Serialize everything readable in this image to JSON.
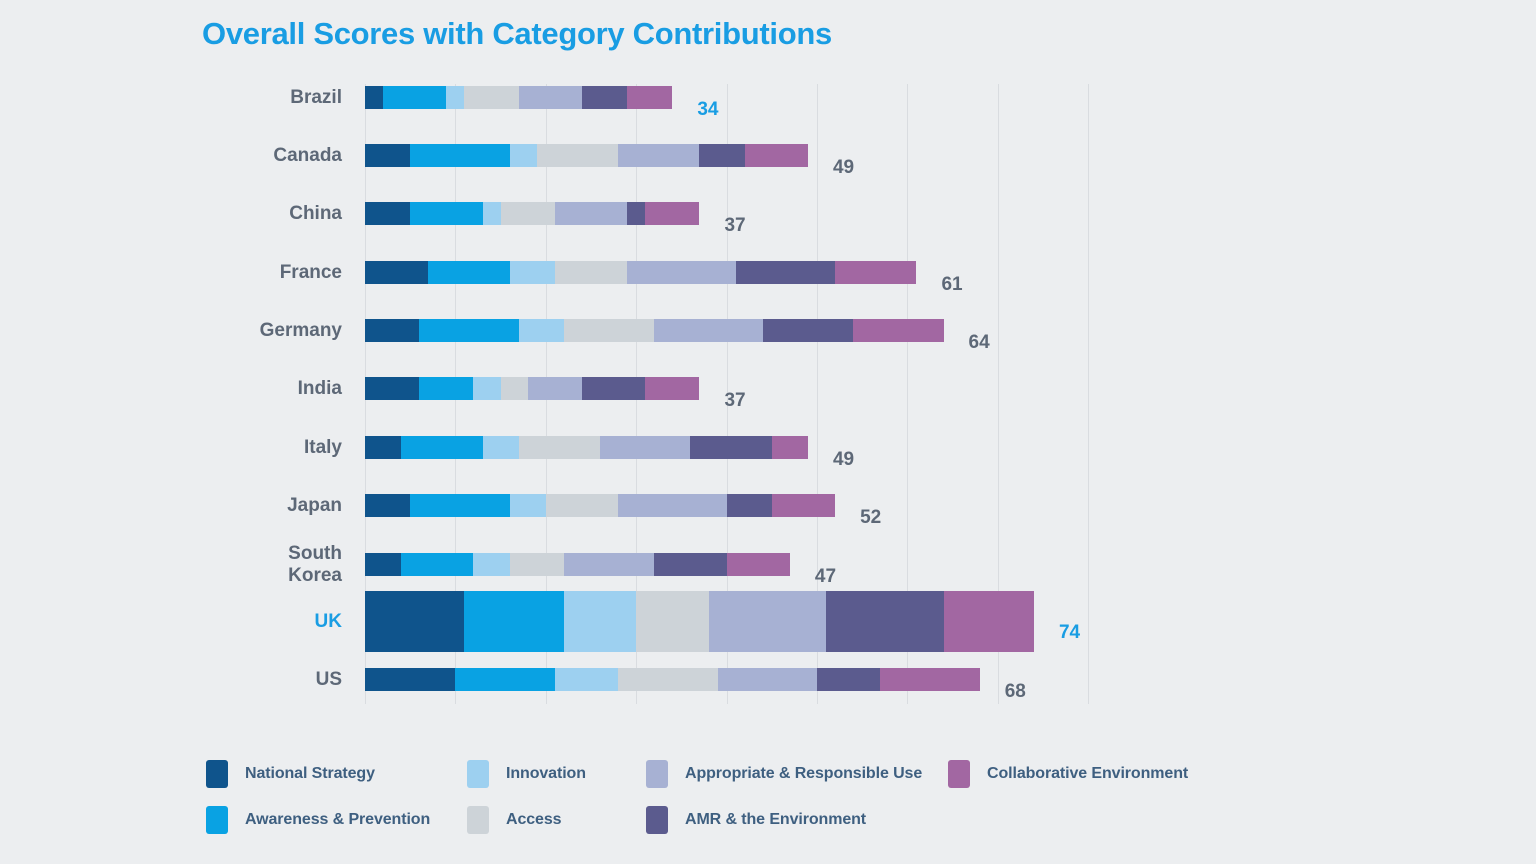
{
  "title": "Overall Scores with Category Contributions",
  "colors": {
    "background": "#eceef0",
    "accent_blue": "#199de3",
    "label_slate": "#5d6877",
    "legend_text": "#3e5f80",
    "gridline": "#d9dce0"
  },
  "chart_data": {
    "type": "bar",
    "orientation": "horizontal_stacked",
    "title": "Overall Scores with Category Contributions",
    "xlim": [
      0,
      85
    ],
    "gridline_interval": 10,
    "grid": true,
    "legend_position": "bottom",
    "categories": [
      {
        "name": "Brazil",
        "total": 34,
        "accent_total": true
      },
      {
        "name": "Canada",
        "total": 49
      },
      {
        "name": "China",
        "total": 37
      },
      {
        "name": "France",
        "total": 61
      },
      {
        "name": "Germany",
        "total": 64
      },
      {
        "name": "India",
        "total": 37
      },
      {
        "name": "Italy",
        "total": 49
      },
      {
        "name": "Japan",
        "total": 52
      },
      {
        "name": "South Korea",
        "total": 47,
        "multiline": true
      },
      {
        "name": "UK",
        "total": 74,
        "accent_total": true,
        "emphasized": true
      },
      {
        "name": "US",
        "total": 68
      }
    ],
    "series": [
      {
        "name": "National Strategy",
        "color": "#0f548c",
        "values": [
          2,
          5,
          5,
          7,
          6,
          6,
          4,
          5,
          4,
          11,
          10
        ]
      },
      {
        "name": "Awareness & Prevention",
        "color": "#09a2e3",
        "values": [
          7,
          11,
          8,
          9,
          11,
          6,
          9,
          11,
          8,
          11,
          11
        ]
      },
      {
        "name": "Innovation",
        "color": "#9dd0f0",
        "values": [
          2,
          3,
          2,
          5,
          5,
          3,
          4,
          4,
          4,
          8,
          7
        ]
      },
      {
        "name": "Access",
        "color": "#cdd3d8",
        "values": [
          6,
          9,
          6,
          8,
          10,
          3,
          9,
          8,
          6,
          8,
          11
        ]
      },
      {
        "name": "Appropriate & Responsible Use",
        "color": "#a7b1d3",
        "values": [
          7,
          9,
          8,
          12,
          12,
          6,
          10,
          12,
          10,
          13,
          11
        ]
      },
      {
        "name": "AMR & the Environment",
        "color": "#5b5b8e",
        "values": [
          5,
          5,
          2,
          11,
          10,
          7,
          9,
          5,
          8,
          13,
          7
        ]
      },
      {
        "name": "Collaborative Environment",
        "color": "#a267a2",
        "values": [
          5,
          7,
          6,
          9,
          10,
          6,
          4,
          7,
          7,
          10,
          11
        ]
      }
    ]
  },
  "legend": {
    "rows": [
      [
        {
          "label": "National Strategy",
          "color": "#0f548c"
        },
        {
          "label": "Innovation",
          "color": "#9dd0f0"
        },
        {
          "label": "Appropriate & Responsible Use",
          "color": "#a7b1d3"
        },
        {
          "label": "Collaborative Environment",
          "color": "#a267a2"
        }
      ],
      [
        {
          "label": "Awareness & Prevention",
          "color": "#09a2e3"
        },
        {
          "label": "Access",
          "color": "#cdd3d8"
        },
        {
          "label": "AMR & the Environment",
          "color": "#5b5b8e"
        }
      ]
    ]
  }
}
